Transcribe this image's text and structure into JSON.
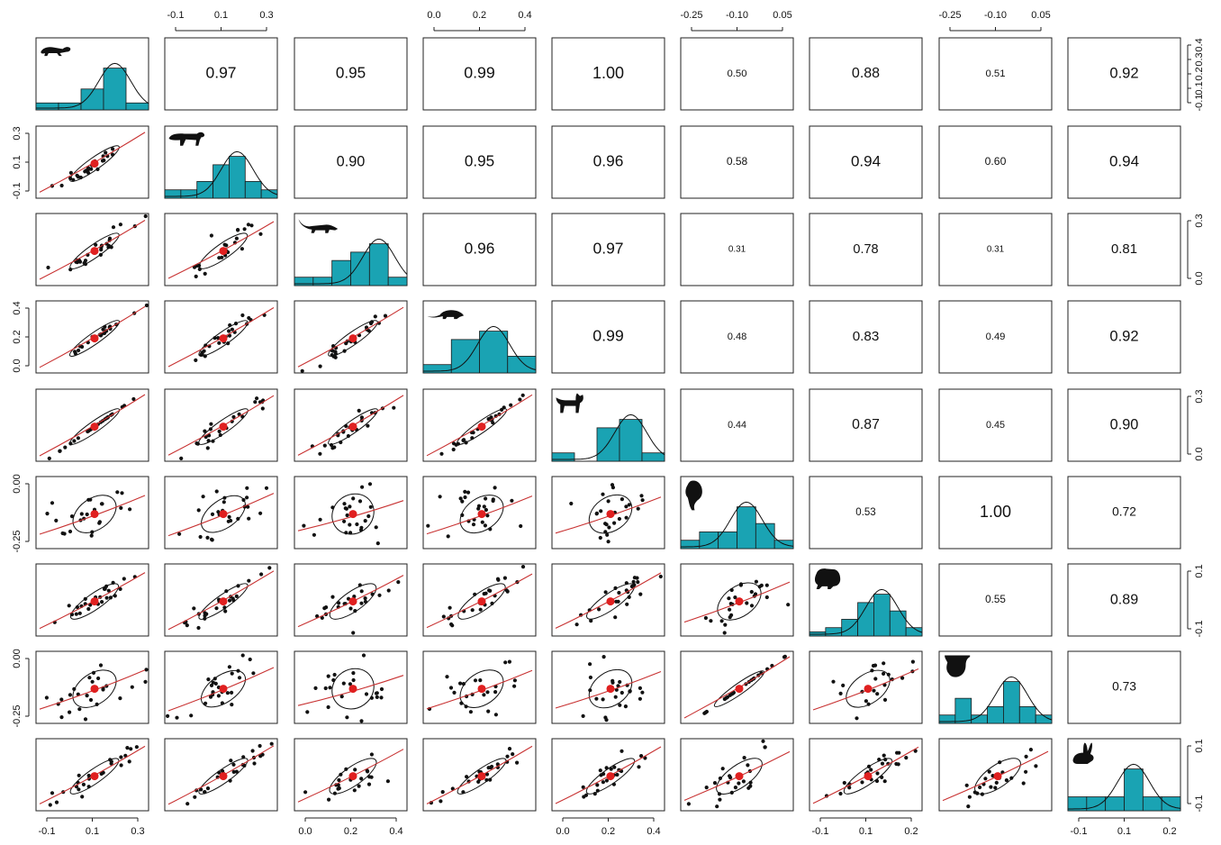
{
  "chart_data": {
    "type": "scatterplot-matrix",
    "n_vars": 9,
    "variables": [
      "otter",
      "puma",
      "coati",
      "opossum",
      "fox",
      "beaver",
      "capybara",
      "sloth",
      "rabbit"
    ],
    "icons": [
      "otter-silhouette-icon",
      "puma-silhouette-icon",
      "coati-silhouette-icon",
      "opossum-silhouette-icon",
      "fox-silhouette-icon",
      "beaver-silhouette-icon",
      "capybara-silhouette-icon",
      "sloth-silhouette-icon",
      "rabbit-silhouette-icon"
    ],
    "correlation_labels": [
      {
        "row": 0,
        "col": 1,
        "label": "0.97",
        "value": 0.97
      },
      {
        "row": 0,
        "col": 2,
        "label": "0.95",
        "value": 0.95
      },
      {
        "row": 0,
        "col": 3,
        "label": "0.99",
        "value": 0.99
      },
      {
        "row": 0,
        "col": 4,
        "label": "1.00",
        "value": 1.0
      },
      {
        "row": 0,
        "col": 5,
        "label": "0.50",
        "value": 0.5
      },
      {
        "row": 0,
        "col": 6,
        "label": "0.88",
        "value": 0.88
      },
      {
        "row": 0,
        "col": 7,
        "label": "0.51",
        "value": 0.51
      },
      {
        "row": 0,
        "col": 8,
        "label": "0.92",
        "value": 0.92
      },
      {
        "row": 1,
        "col": 2,
        "label": "0.90",
        "value": 0.9
      },
      {
        "row": 1,
        "col": 3,
        "label": "0.95",
        "value": 0.95
      },
      {
        "row": 1,
        "col": 4,
        "label": "0.96",
        "value": 0.96
      },
      {
        "row": 1,
        "col": 5,
        "label": "0.58",
        "value": 0.58
      },
      {
        "row": 1,
        "col": 6,
        "label": "0.94",
        "value": 0.94
      },
      {
        "row": 1,
        "col": 7,
        "label": "0.60",
        "value": 0.6
      },
      {
        "row": 1,
        "col": 8,
        "label": "0.94",
        "value": 0.94
      },
      {
        "row": 2,
        "col": 3,
        "label": "0.96",
        "value": 0.96
      },
      {
        "row": 2,
        "col": 4,
        "label": "0.97",
        "value": 0.97
      },
      {
        "row": 2,
        "col": 5,
        "label": "0.31",
        "value": 0.31
      },
      {
        "row": 2,
        "col": 6,
        "label": "0.78",
        "value": 0.78
      },
      {
        "row": 2,
        "col": 7,
        "label": "0.31",
        "value": 0.31
      },
      {
        "row": 2,
        "col": 8,
        "label": "0.81",
        "value": 0.81
      },
      {
        "row": 3,
        "col": 4,
        "label": "0.99",
        "value": 0.99
      },
      {
        "row": 3,
        "col": 5,
        "label": "0.48",
        "value": 0.48
      },
      {
        "row": 3,
        "col": 6,
        "label": "0.83",
        "value": 0.83
      },
      {
        "row": 3,
        "col": 7,
        "label": "0.49",
        "value": 0.49
      },
      {
        "row": 3,
        "col": 8,
        "label": "0.92",
        "value": 0.92
      },
      {
        "row": 4,
        "col": 5,
        "label": "0.44",
        "value": 0.44
      },
      {
        "row": 4,
        "col": 6,
        "label": "0.87",
        "value": 0.87
      },
      {
        "row": 4,
        "col": 7,
        "label": "0.45",
        "value": 0.45
      },
      {
        "row": 4,
        "col": 8,
        "label": "0.90",
        "value": 0.9
      },
      {
        "row": 5,
        "col": 6,
        "label": "0.53",
        "value": 0.53
      },
      {
        "row": 5,
        "col": 7,
        "label": "1.00",
        "value": 1.0
      },
      {
        "row": 5,
        "col": 8,
        "label": "0.72",
        "value": 0.72
      },
      {
        "row": 6,
        "col": 7,
        "label": "0.55",
        "value": 0.55
      },
      {
        "row": 6,
        "col": 8,
        "label": "0.89",
        "value": 0.89
      },
      {
        "row": 7,
        "col": 8,
        "label": "0.73",
        "value": 0.73
      }
    ],
    "histograms": [
      [
        1,
        1,
        3,
        6,
        1
      ],
      [
        1,
        1,
        2,
        4,
        5,
        2,
        1
      ],
      [
        1,
        1,
        3,
        4,
        5,
        1
      ],
      [
        1,
        4,
        5,
        2
      ],
      [
        1,
        0,
        4,
        5,
        1
      ],
      [
        1,
        2,
        2,
        5,
        3,
        1
      ],
      [
        0.5,
        1,
        2,
        4,
        5,
        3,
        1
      ],
      [
        1,
        3,
        1,
        2,
        5,
        2,
        1
      ],
      [
        1,
        1,
        1,
        3,
        1,
        1
      ]
    ],
    "top_axis_ticks": [
      {
        "col": 1,
        "labels": [
          "-0.1",
          "0.1",
          "0.3"
        ]
      },
      {
        "col": 3,
        "labels": [
          "0.0",
          "0.2",
          "0.4"
        ]
      },
      {
        "col": 5,
        "labels": [
          "-0.25",
          "-0.10",
          "0.05"
        ]
      },
      {
        "col": 7,
        "labels": [
          "-0.25",
          "-0.10",
          "0.05"
        ]
      }
    ],
    "bottom_axis_ticks": [
      {
        "col": 0,
        "labels": [
          "-0.1",
          "0.1",
          "0.3"
        ]
      },
      {
        "col": 2,
        "labels": [
          "0.0",
          "0.2",
          "0.4"
        ]
      },
      {
        "col": 4,
        "labels": [
          "0.0",
          "0.2",
          "0.4"
        ]
      },
      {
        "col": 6,
        "labels": [
          "-0.1",
          "0.1",
          "0.2"
        ]
      },
      {
        "col": 8,
        "labels": [
          "-0.1",
          "0.1",
          "0.2"
        ]
      }
    ],
    "left_axis_ticks": [
      {
        "row": 1,
        "labels": [
          "-0.1",
          "0.1",
          "0.3"
        ]
      },
      {
        "row": 3,
        "labels": [
          "0.0",
          "0.2",
          "0.4"
        ]
      },
      {
        "row": 5,
        "labels": [
          "-0.25",
          "0.00"
        ]
      },
      {
        "row": 7,
        "labels": [
          "-0.25",
          "0.00"
        ]
      }
    ],
    "right_axis_ticks": [
      {
        "row": 0,
        "labels": [
          "-0.1",
          "0.1",
          "0.2",
          "0.3",
          "0.4"
        ]
      },
      {
        "row": 2,
        "labels": [
          "0.0",
          "0.3"
        ]
      },
      {
        "row": 4,
        "labels": [
          "0.0",
          "0.3"
        ]
      },
      {
        "row": 6,
        "labels": [
          "-0.1",
          "0.1"
        ]
      },
      {
        "row": 8,
        "labels": [
          "-0.1",
          "0.1"
        ]
      }
    ],
    "colors": {
      "bar": "#1aa3b3",
      "bar_stroke": "#1a1a1a",
      "point": "#111111",
      "centroid": "#e02020",
      "smooth": "#c83232",
      "ellipse": "#111111",
      "density": "#111111"
    }
  }
}
